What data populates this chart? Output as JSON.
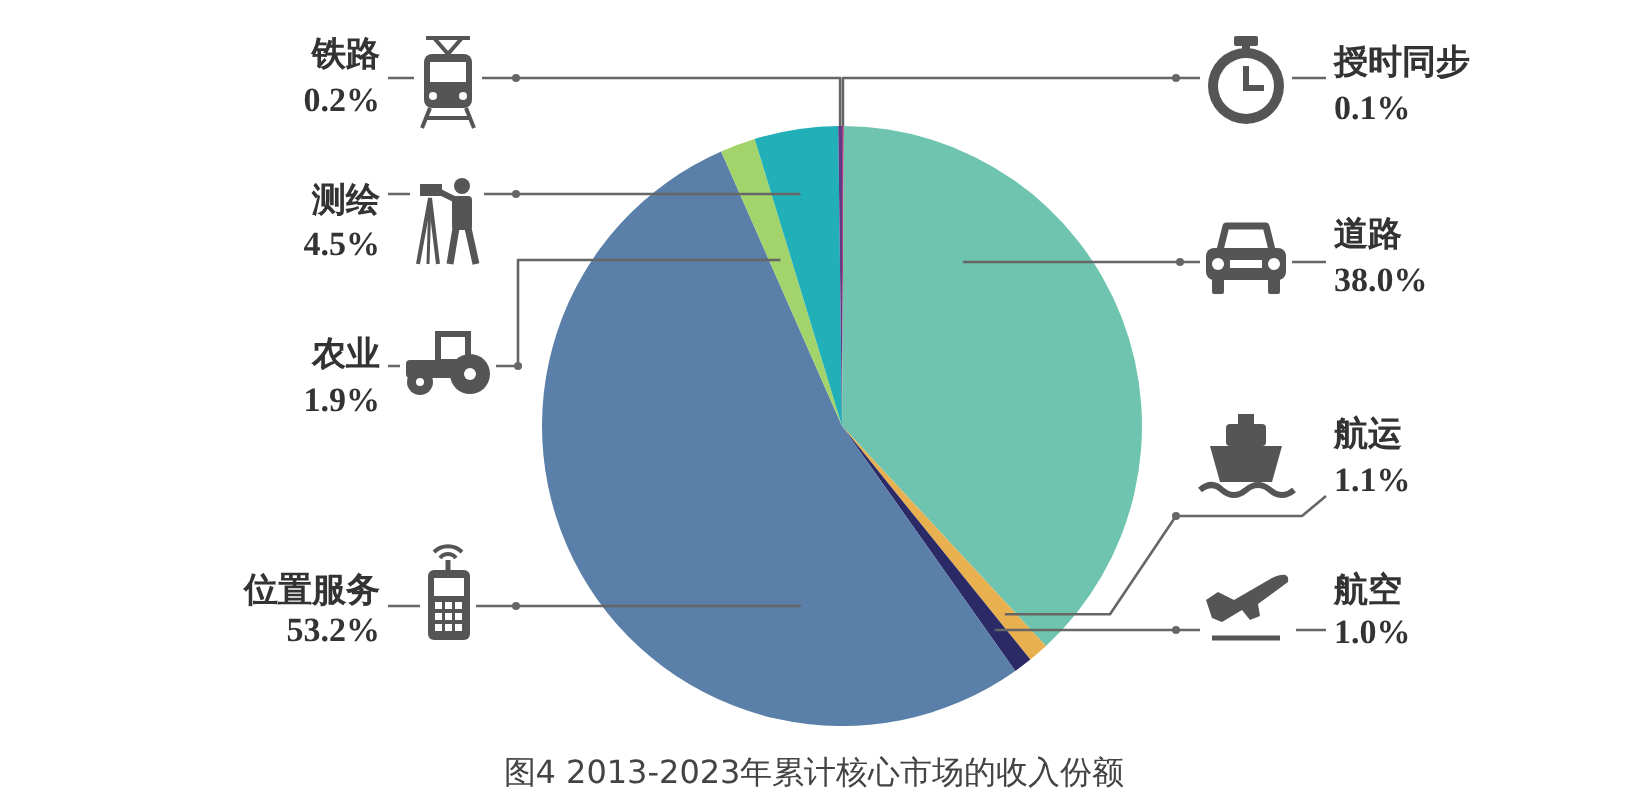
{
  "chart_data": {
    "type": "pie",
    "categories": [
      "授时同步",
      "道路",
      "航运",
      "航空",
      "位置服务",
      "农业",
      "测绘",
      "铁路"
    ],
    "values": [
      0.1,
      38.0,
      1.1,
      1.0,
      53.2,
      1.9,
      4.5,
      0.2
    ],
    "colors": [
      "#a8417e",
      "#6ec4ae",
      "#e8b04f",
      "#2b2a66",
      "#5a7fa8",
      "#a3d36b",
      "#22b0b8",
      "#5e3a87"
    ],
    "value_labels": [
      "0.1%",
      "38.0%",
      "1.1%",
      "1.0%",
      "53.2%",
      "1.9%",
      "4.5%",
      "0.2%"
    ],
    "annotations": [
      "图4 2013-2023年累计核心市场的收入份额"
    ]
  }
}
